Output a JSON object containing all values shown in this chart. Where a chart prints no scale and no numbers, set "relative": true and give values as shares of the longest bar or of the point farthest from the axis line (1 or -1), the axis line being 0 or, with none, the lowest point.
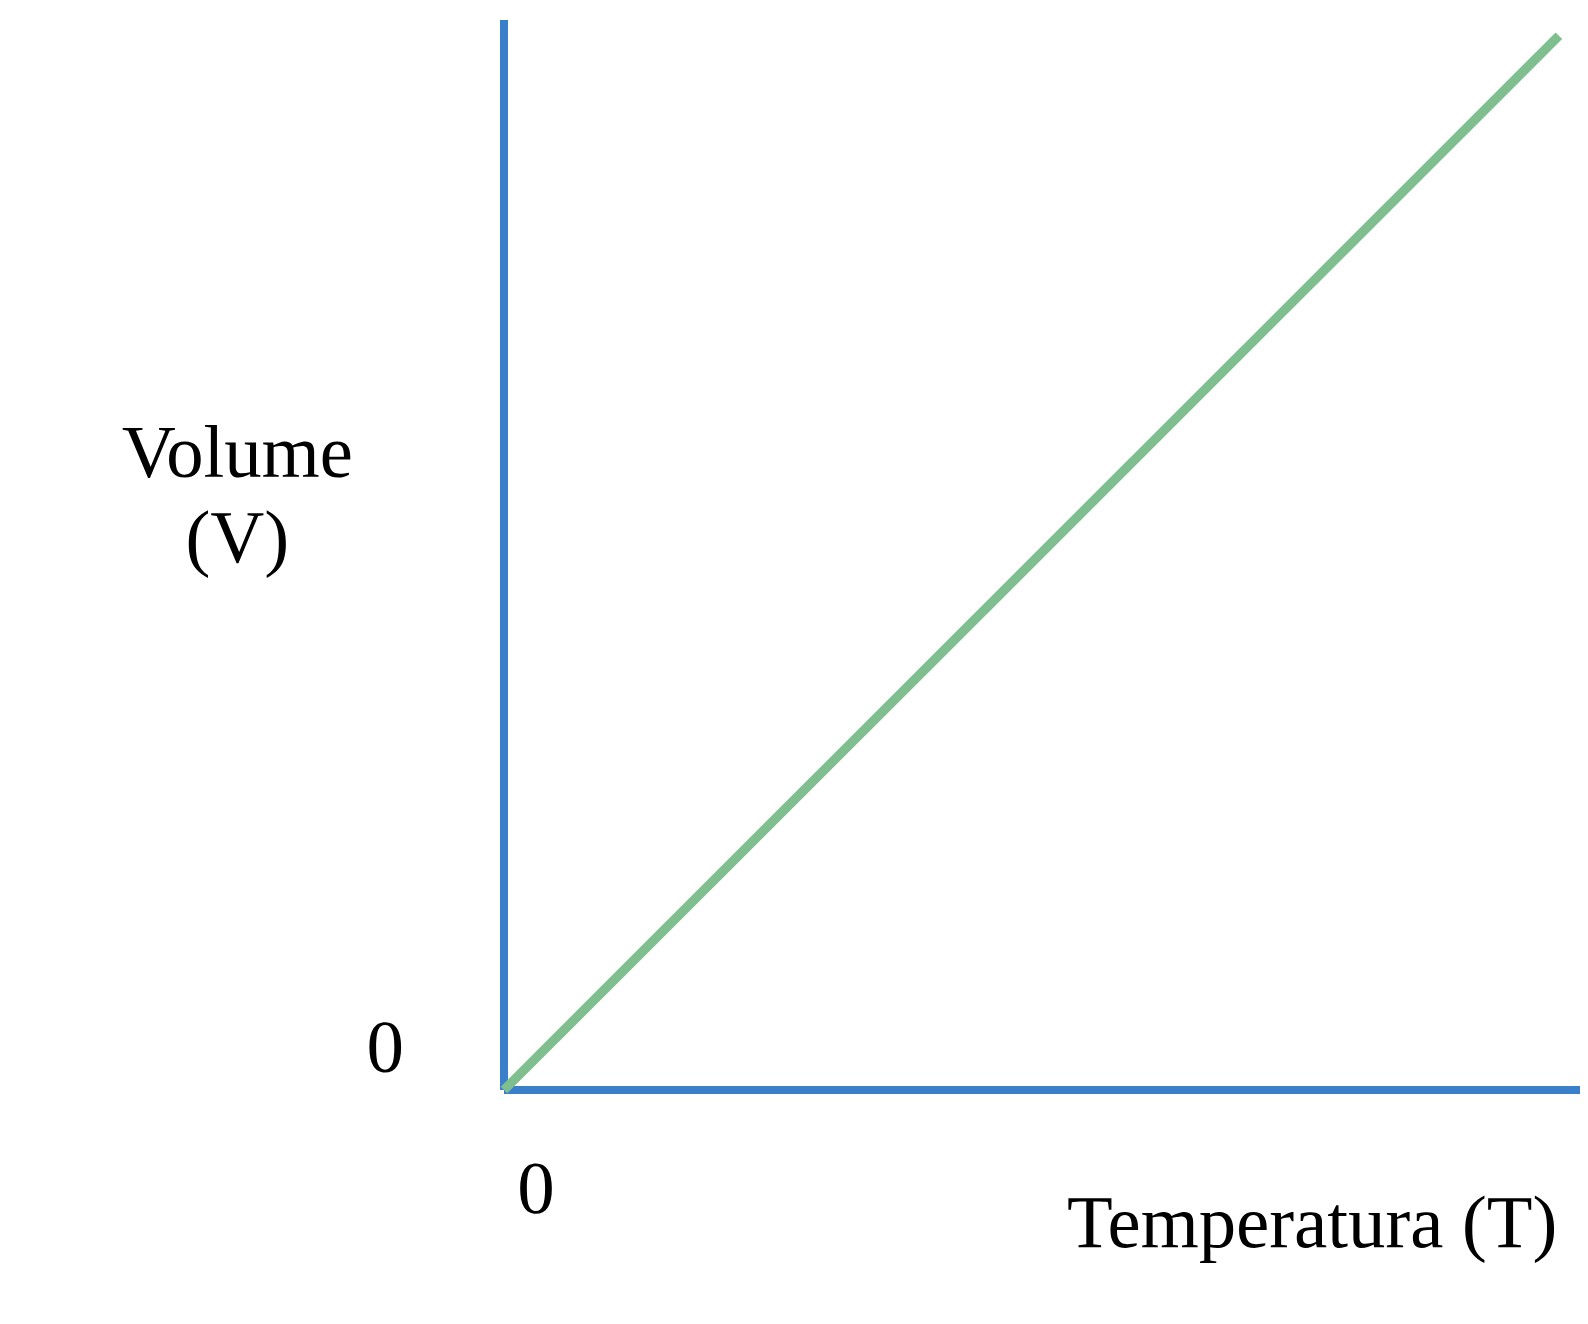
{
  "chart_data": {
    "type": "line",
    "xlabel": "Temperatura (T)",
    "ylabel": "Volume (V)",
    "categories": [
      null,
      null
    ],
    "values": [
      0,
      1
    ],
    "color": "#7fbf8f",
    "relative": true,
    "annotations": [
      "0",
      "0"
    ]
  }
}
